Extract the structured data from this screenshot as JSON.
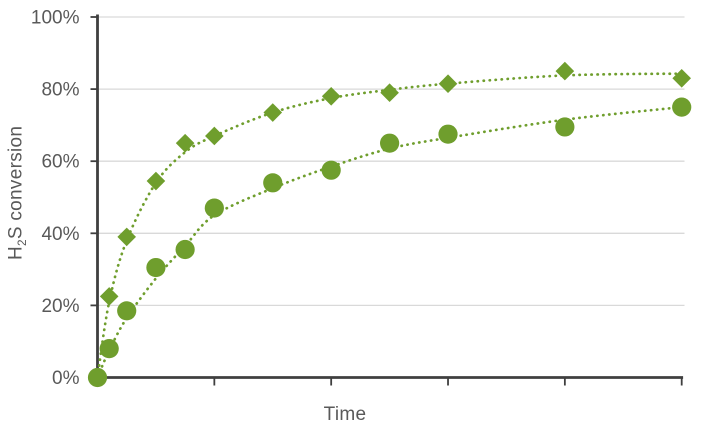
{
  "colors": {
    "series_green": "#6f9e2d",
    "axis_gray": "#3f3f3f",
    "grid_gray": "#d9d9d9",
    "label_gray": "#595959"
  },
  "ylabel": {
    "pre": "H",
    "sub": "2",
    "post": "S conversion"
  },
  "xlabel": "Time",
  "chart_data": {
    "type": "scatter",
    "title": "",
    "xlabel": "Time",
    "ylabel": "H2S conversion",
    "xlim": [
      0,
      5
    ],
    "ylim": [
      0,
      100
    ],
    "grid": "horizontal",
    "legend": "none",
    "x_tick_values": [
      1,
      2,
      3,
      4,
      5
    ],
    "x_tick_labels": [
      "",
      "",
      "",
      "",
      ""
    ],
    "y_tick_values": [
      0,
      20,
      40,
      60,
      80,
      100
    ],
    "y_tick_labels": [
      "0%",
      "20%",
      "40%",
      "60%",
      "80%",
      "100%"
    ],
    "x": [
      0,
      0.1,
      0.25,
      0.5,
      0.75,
      1,
      1.5,
      2,
      2.5,
      3,
      4,
      5
    ],
    "series": [
      {
        "name": "diamond-series",
        "marker": "diamond",
        "line": "dotted-trend",
        "values": [
          0,
          22.5,
          39,
          54.5,
          65,
          67,
          73.5,
          78,
          79,
          81.5,
          85,
          83
        ],
        "trend": [
          0,
          21,
          38,
          54,
          62.5,
          67,
          73.5,
          77.5,
          79.8,
          81.5,
          83.8,
          84.3
        ]
      },
      {
        "name": "circle-series",
        "marker": "circle",
        "line": "dotted-trend",
        "values": [
          0,
          8,
          18.5,
          30.5,
          35.5,
          47,
          54,
          57.5,
          65,
          67.5,
          69.5,
          75
        ],
        "trend": [
          0,
          7.5,
          16.5,
          27.5,
          36.5,
          45,
          52.5,
          58.5,
          63.5,
          66.5,
          71.5,
          75
        ]
      }
    ]
  }
}
